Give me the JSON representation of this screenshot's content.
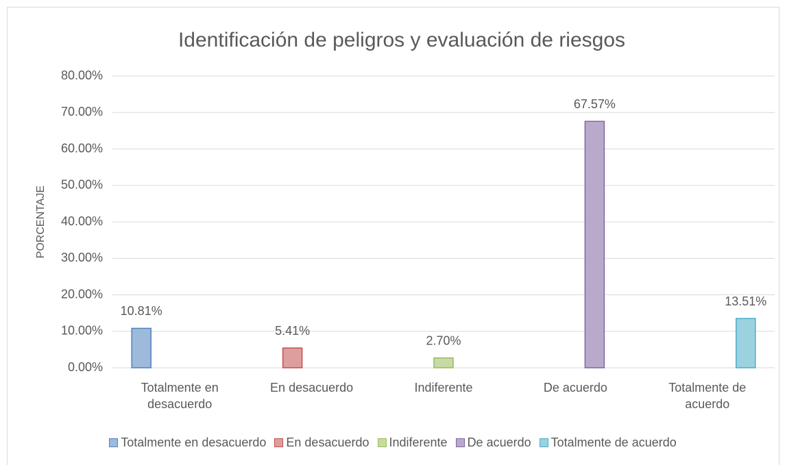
{
  "chart_data": {
    "type": "bar",
    "title": "Identificación de peligros y evaluación de riesgos",
    "ylabel": "PORCENTAJE",
    "categories": [
      "Totalmente en desacuerdo",
      "En desacuerdo",
      "Indiferente",
      "De acuerdo",
      "Totalmente de acuerdo"
    ],
    "series": [
      {
        "name": "Totalmente en desacuerdo",
        "color": "#4f81bd",
        "values": [
          10.81,
          null,
          null,
          null,
          null
        ],
        "value_labels": [
          "10.81%",
          null,
          null,
          null,
          null
        ]
      },
      {
        "name": "En desacuerdo",
        "color": "#c0504d",
        "values": [
          null,
          5.41,
          null,
          null,
          null
        ],
        "value_labels": [
          null,
          "5.41%",
          null,
          null,
          null
        ]
      },
      {
        "name": "Indiferente",
        "color": "#9bbb59",
        "values": [
          null,
          null,
          2.7,
          null,
          null
        ],
        "value_labels": [
          null,
          null,
          "2.70%",
          null,
          null
        ]
      },
      {
        "name": "De acuerdo",
        "color": "#8064a2",
        "values": [
          null,
          null,
          null,
          67.57,
          null
        ],
        "value_labels": [
          null,
          null,
          null,
          "67.57%",
          null
        ]
      },
      {
        "name": "Totalmente de acuerdo",
        "color": "#4bacc6",
        "values": [
          null,
          null,
          null,
          null,
          13.51
        ],
        "value_labels": [
          null,
          null,
          null,
          null,
          "13.51%"
        ]
      }
    ],
    "ylim": [
      0,
      80
    ],
    "yticks": [
      {
        "value": 0,
        "label": "0.00%"
      },
      {
        "value": 10,
        "label": "10.00%"
      },
      {
        "value": 20,
        "label": "20.00%"
      },
      {
        "value": 30,
        "label": "30.00%"
      },
      {
        "value": 40,
        "label": "40.00%"
      },
      {
        "value": 50,
        "label": "50.00%"
      },
      {
        "value": 60,
        "label": "60.00%"
      },
      {
        "value": 70,
        "label": "70.00%"
      },
      {
        "value": 80,
        "label": "80.00%"
      }
    ],
    "grid": true,
    "legend": "bottom"
  }
}
